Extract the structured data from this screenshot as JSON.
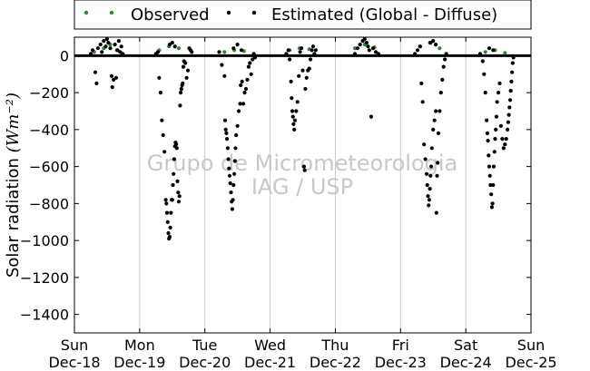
{
  "chart_data": {
    "type": "scatter",
    "ylabel": "Solar radiation",
    "ylabel_unit": "(Wm⁻²)",
    "ylim": [
      -1500,
      100
    ],
    "yticks": [
      0,
      -200,
      -400,
      -600,
      -800,
      -1000,
      -1200,
      -1400
    ],
    "xlim": [
      0,
      7
    ],
    "xticks": [
      {
        "day": "Sun",
        "date": "Dec-18"
      },
      {
        "day": "Mon",
        "date": "Dec-19"
      },
      {
        "day": "Tue",
        "date": "Dec-20"
      },
      {
        "day": "Wed",
        "date": "Dec-21"
      },
      {
        "day": "Thu",
        "date": "Dec-22"
      },
      {
        "day": "Fri",
        "date": "Dec-23"
      },
      {
        "day": "Sat",
        "date": "Dec-24"
      },
      {
        "day": "Sun",
        "date": "Dec-25"
      }
    ],
    "grid": "vertical",
    "legend_position": "top",
    "watermark": [
      "Grupo de Micrometeorologia",
      "IAG / USP"
    ],
    "series": [
      {
        "name": "Observed",
        "color": "#2a8a2a",
        "points": [
          [
            0.3,
            20
          ],
          [
            0.45,
            40
          ],
          [
            0.55,
            60
          ],
          [
            0.65,
            30
          ],
          [
            1.3,
            30
          ],
          [
            1.45,
            50
          ],
          [
            1.6,
            40
          ],
          [
            2.3,
            20
          ],
          [
            2.45,
            30
          ],
          [
            2.6,
            25
          ],
          [
            3.3,
            30
          ],
          [
            3.45,
            40
          ],
          [
            3.6,
            35
          ],
          [
            4.3,
            40
          ],
          [
            4.45,
            60
          ],
          [
            4.6,
            45
          ],
          [
            5.3,
            50
          ],
          [
            5.45,
            70
          ],
          [
            5.6,
            40
          ],
          [
            6.3,
            20
          ],
          [
            6.45,
            30
          ],
          [
            6.6,
            15
          ]
        ]
      },
      {
        "name": "Estimated (Global - Diffuse)",
        "color": "#000000",
        "points": [
          [
            0.25,
            10
          ],
          [
            0.28,
            30
          ],
          [
            0.32,
            -90
          ],
          [
            0.34,
            -150
          ],
          [
            0.36,
            40
          ],
          [
            0.4,
            60
          ],
          [
            0.42,
            20
          ],
          [
            0.45,
            80
          ],
          [
            0.48,
            50
          ],
          [
            0.5,
            90
          ],
          [
            0.52,
            70
          ],
          [
            0.55,
            40
          ],
          [
            0.57,
            -110
          ],
          [
            0.58,
            -170
          ],
          [
            0.6,
            -130
          ],
          [
            0.62,
            60
          ],
          [
            0.64,
            -120
          ],
          [
            0.66,
            30
          ],
          [
            0.68,
            80
          ],
          [
            0.7,
            20
          ],
          [
            0.72,
            50
          ],
          [
            0.74,
            10
          ],
          [
            1.25,
            10
          ],
          [
            1.28,
            20
          ],
          [
            1.3,
            -120
          ],
          [
            1.32,
            -200
          ],
          [
            1.34,
            -350
          ],
          [
            1.36,
            -430
          ],
          [
            1.38,
            -520
          ],
          [
            1.4,
            -780
          ],
          [
            1.41,
            -800
          ],
          [
            1.42,
            -850
          ],
          [
            1.43,
            -900
          ],
          [
            1.44,
            -960
          ],
          [
            1.45,
            -990
          ],
          [
            1.46,
            -980
          ],
          [
            1.47,
            -930
          ],
          [
            1.48,
            -850
          ],
          [
            1.49,
            -780
          ],
          [
            1.5,
            -780
          ],
          [
            1.51,
            -700
          ],
          [
            1.52,
            -640
          ],
          [
            1.53,
            -560
          ],
          [
            1.54,
            -490
          ],
          [
            1.55,
            -470
          ],
          [
            1.56,
            -480
          ],
          [
            1.57,
            -500
          ],
          [
            1.58,
            -680
          ],
          [
            1.59,
            -740
          ],
          [
            1.6,
            -790
          ],
          [
            1.61,
            -760
          ],
          [
            1.62,
            -270
          ],
          [
            1.63,
            -200
          ],
          [
            1.64,
            -180
          ],
          [
            1.65,
            -160
          ],
          [
            1.66,
            -150
          ],
          [
            1.67,
            -60
          ],
          [
            1.68,
            -30
          ],
          [
            1.7,
            -40
          ],
          [
            1.72,
            -120
          ],
          [
            1.74,
            -80
          ],
          [
            1.76,
            40
          ],
          [
            1.78,
            30
          ],
          [
            1.8,
            20
          ],
          [
            1.46,
            60
          ],
          [
            1.5,
            70
          ],
          [
            1.54,
            50
          ],
          [
            2.22,
            20
          ],
          [
            2.26,
            -50
          ],
          [
            2.3,
            -110
          ],
          [
            2.31,
            -350
          ],
          [
            2.32,
            -400
          ],
          [
            2.33,
            -420
          ],
          [
            2.34,
            -450
          ],
          [
            2.35,
            -500
          ],
          [
            2.36,
            -560
          ],
          [
            2.37,
            -610
          ],
          [
            2.38,
            -650
          ],
          [
            2.39,
            -690
          ],
          [
            2.4,
            -740
          ],
          [
            2.41,
            -790
          ],
          [
            2.42,
            -830
          ],
          [
            2.43,
            -780
          ],
          [
            2.44,
            -700
          ],
          [
            2.45,
            -640
          ],
          [
            2.46,
            -570
          ],
          [
            2.47,
            -500
          ],
          [
            2.48,
            -430
          ],
          [
            2.5,
            -380
          ],
          [
            2.52,
            -300
          ],
          [
            2.54,
            -260
          ],
          [
            2.55,
            -160
          ],
          [
            2.57,
            -140
          ],
          [
            2.59,
            -260
          ],
          [
            2.61,
            -200
          ],
          [
            2.63,
            -180
          ],
          [
            2.65,
            -130
          ],
          [
            2.67,
            -60
          ],
          [
            2.69,
            -40
          ],
          [
            2.71,
            -100
          ],
          [
            2.73,
            -20
          ],
          [
            2.75,
            10
          ],
          [
            2.77,
            -10
          ],
          [
            2.44,
            40
          ],
          [
            2.5,
            60
          ],
          [
            2.56,
            30
          ],
          [
            3.25,
            10
          ],
          [
            3.28,
            30
          ],
          [
            3.3,
            -20
          ],
          [
            3.32,
            -140
          ],
          [
            3.33,
            -230
          ],
          [
            3.34,
            -300
          ],
          [
            3.35,
            -330
          ],
          [
            3.36,
            -370
          ],
          [
            3.37,
            -400
          ],
          [
            3.38,
            -350
          ],
          [
            3.4,
            -300
          ],
          [
            3.42,
            -250
          ],
          [
            3.44,
            -110
          ],
          [
            3.46,
            20
          ],
          [
            3.48,
            40
          ],
          [
            3.5,
            -80
          ],
          [
            3.52,
            -600
          ],
          [
            3.53,
            -620
          ],
          [
            3.54,
            -180
          ],
          [
            3.56,
            -120
          ],
          [
            3.58,
            -80
          ],
          [
            3.6,
            -70
          ],
          [
            3.62,
            -20
          ],
          [
            3.64,
            30
          ],
          [
            3.66,
            50
          ],
          [
            3.68,
            10
          ],
          [
            3.7,
            30
          ],
          [
            4.3,
            10
          ],
          [
            4.34,
            40
          ],
          [
            4.38,
            60
          ],
          [
            4.42,
            80
          ],
          [
            4.45,
            90
          ],
          [
            4.48,
            70
          ],
          [
            4.5,
            50
          ],
          [
            4.52,
            30
          ],
          [
            4.55,
            -330
          ],
          [
            4.58,
            40
          ],
          [
            4.62,
            20
          ],
          [
            4.66,
            10
          ],
          [
            5.22,
            10
          ],
          [
            5.26,
            30
          ],
          [
            5.3,
            50
          ],
          [
            5.32,
            -150
          ],
          [
            5.34,
            -250
          ],
          [
            5.36,
            -480
          ],
          [
            5.38,
            -560
          ],
          [
            5.4,
            -640
          ],
          [
            5.41,
            -700
          ],
          [
            5.42,
            -760
          ],
          [
            5.43,
            -810
          ],
          [
            5.44,
            -780
          ],
          [
            5.45,
            -720
          ],
          [
            5.46,
            -650
          ],
          [
            5.47,
            -600
          ],
          [
            5.48,
            -500
          ],
          [
            5.5,
            -400
          ],
          [
            5.52,
            -350
          ],
          [
            5.54,
            -300
          ],
          [
            5.55,
            -850
          ],
          [
            5.56,
            -650
          ],
          [
            5.57,
            -580
          ],
          [
            5.58,
            -420
          ],
          [
            5.6,
            -300
          ],
          [
            5.62,
            -200
          ],
          [
            5.64,
            -130
          ],
          [
            5.66,
            -60
          ],
          [
            5.68,
            -20
          ],
          [
            5.7,
            10
          ],
          [
            5.46,
            70
          ],
          [
            5.5,
            80
          ],
          [
            5.54,
            60
          ],
          [
            6.22,
            10
          ],
          [
            6.26,
            -30
          ],
          [
            6.28,
            -100
          ],
          [
            6.3,
            -200
          ],
          [
            6.32,
            -350
          ],
          [
            6.33,
            -420
          ],
          [
            6.34,
            -460
          ],
          [
            6.35,
            -540
          ],
          [
            6.36,
            -600
          ],
          [
            6.37,
            -650
          ],
          [
            6.38,
            -700
          ],
          [
            6.39,
            -750
          ],
          [
            6.4,
            -820
          ],
          [
            6.41,
            -800
          ],
          [
            6.42,
            -700
          ],
          [
            6.43,
            -600
          ],
          [
            6.44,
            -520
          ],
          [
            6.45,
            -450
          ],
          [
            6.46,
            -400
          ],
          [
            6.47,
            -330
          ],
          [
            6.48,
            -250
          ],
          [
            6.5,
            -200
          ],
          [
            6.52,
            -150
          ],
          [
            6.54,
            -380
          ],
          [
            6.56,
            -450
          ],
          [
            6.58,
            -500
          ],
          [
            6.6,
            -480
          ],
          [
            6.62,
            -450
          ],
          [
            6.64,
            -400
          ],
          [
            6.65,
            -360
          ],
          [
            6.66,
            -320
          ],
          [
            6.67,
            -280
          ],
          [
            6.68,
            -240
          ],
          [
            6.69,
            -190
          ],
          [
            6.7,
            -140
          ],
          [
            6.71,
            -90
          ],
          [
            6.72,
            -40
          ],
          [
            6.73,
            -10
          ],
          [
            6.36,
            40
          ],
          [
            6.42,
            30
          ]
        ]
      }
    ]
  }
}
